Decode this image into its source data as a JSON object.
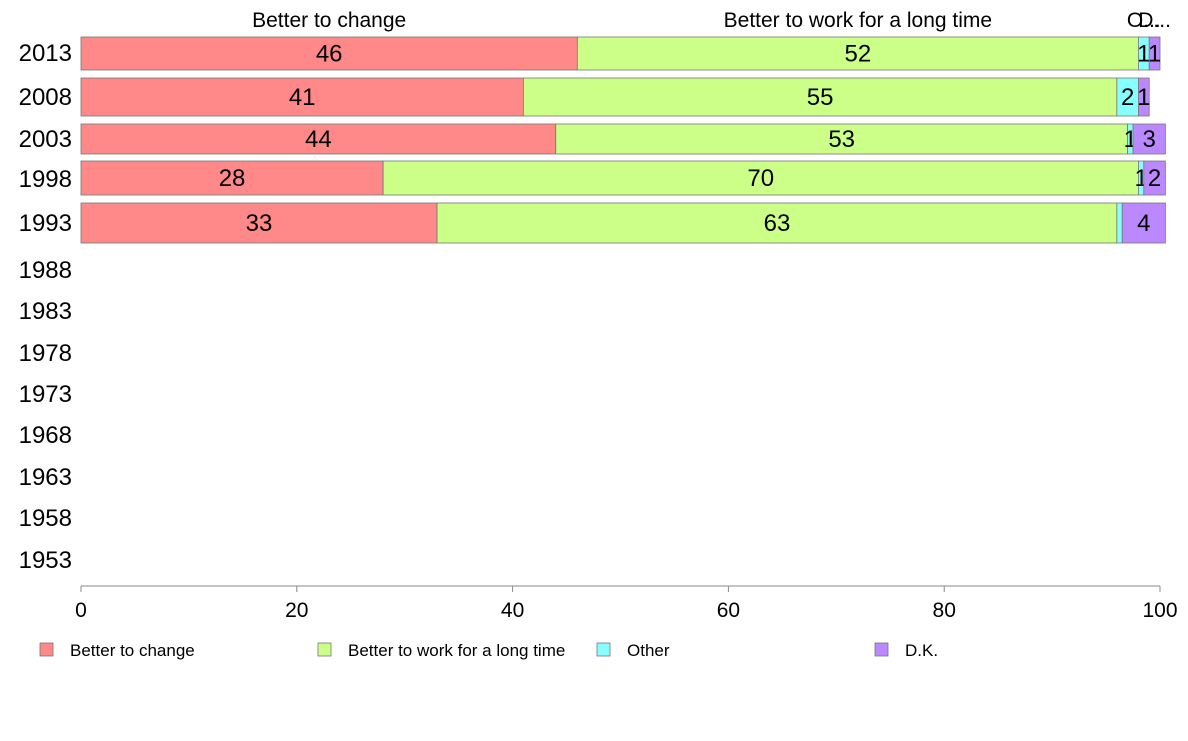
{
  "chart_data": {
    "type": "bar",
    "orientation": "horizontal",
    "stacked": true,
    "title": "",
    "xlabel": "",
    "ylabel": "",
    "xlim": [
      0,
      100
    ],
    "x_ticks": [
      "0",
      "20",
      "40",
      "60",
      "80",
      "100"
    ],
    "categories": [
      "2013",
      "2008",
      "2003",
      "1998",
      "1993",
      "1988",
      "1983",
      "1978",
      "1973",
      "1968",
      "1963",
      "1958",
      "1953"
    ],
    "series": [
      {
        "name": "Better to change",
        "color": "#ff8888",
        "values": [
          46,
          41,
          44,
          28,
          33,
          null,
          null,
          null,
          null,
          null,
          null,
          null,
          null
        ],
        "labels": [
          "46",
          "41",
          "44",
          "28",
          "33"
        ]
      },
      {
        "name": "Better to work for a long time",
        "color": "#ccff88",
        "values": [
          52,
          55,
          53,
          70,
          63,
          null,
          null,
          null,
          null,
          null,
          null,
          null,
          null
        ],
        "labels": [
          "52",
          "55",
          "53",
          "70",
          "63"
        ]
      },
      {
        "name": "Other",
        "color": "#88ffff",
        "values": [
          1,
          2,
          0.5,
          0.5,
          0.5,
          null,
          null,
          null,
          null,
          null,
          null,
          null,
          null
        ],
        "labels": [
          "1",
          "2",
          "1",
          "1",
          ""
        ]
      },
      {
        "name": "D.K.",
        "color": "#bb88ff",
        "values": [
          1,
          1,
          3,
          2,
          4,
          null,
          null,
          null,
          null,
          null,
          null,
          null,
          null
        ],
        "labels": [
          "1",
          "1",
          "3",
          "2",
          "4"
        ]
      }
    ],
    "top_labels": [
      "Better to change",
      "Better to work for a long time",
      "O...",
      "D..."
    ],
    "legend": {
      "position": "bottom",
      "entries": [
        "Better to change",
        "Better to work for a long time",
        "Other",
        "D.K."
      ]
    },
    "grid": false
  }
}
